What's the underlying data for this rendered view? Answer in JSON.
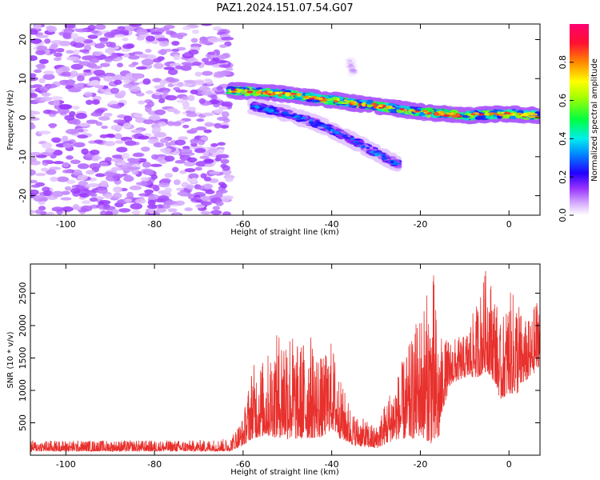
{
  "title": "PAZ1.2024.151.07.54.G07",
  "chart_data": [
    {
      "type": "heatmap",
      "xlabel": "Height of straight line (km)",
      "ylabel": "Frequency (Hz)",
      "xlim": [
        -108,
        7
      ],
      "ylim": [
        -25,
        24
      ],
      "x_ticks": [
        -100,
        -80,
        -60,
        -40,
        -20,
        0
      ],
      "y_ticks": [
        -20,
        -10,
        0,
        10,
        20
      ],
      "colorbar": {
        "label": "Normalized spectral amplitude",
        "range": [
          0,
          1
        ],
        "ticks": [
          0.0,
          0.2,
          0.4,
          0.6,
          0.8
        ],
        "colormap": [
          "#ffffff",
          "#e8c8ff",
          "#b070f0",
          "#7a1be0",
          "#0000ff",
          "#00d8ff",
          "#00ff60",
          "#ffff00",
          "#ff8000",
          "#ff0060"
        ]
      },
      "regions": [
        {
          "name": "noise",
          "x_range": [
            -108,
            -63
          ],
          "freq_range": [
            -25,
            24
          ],
          "amplitude": 0.12
        },
        {
          "name": "main_branch",
          "points": [
            [
              -63,
              7
            ],
            [
              -50,
              6
            ],
            [
              -40,
              4.5
            ],
            [
              -30,
              3
            ],
            [
              -20,
              1.5
            ],
            [
              -10,
              0.5
            ],
            [
              0,
              1
            ],
            [
              7,
              0.5
            ]
          ],
          "peak_amplitude": 0.95
        },
        {
          "name": "second_branch",
          "points": [
            [
              -58,
              3
            ],
            [
              -50,
              1
            ],
            [
              -42,
              -2
            ],
            [
              -35,
              -6
            ],
            [
              -30,
              -9
            ],
            [
              -25,
              -12
            ]
          ],
          "peak_amplitude": 0.35
        },
        {
          "name": "spur",
          "points": [
            [
              -36,
              14
            ],
            [
              -35,
              12
            ]
          ],
          "peak_amplitude": 0.1
        }
      ]
    },
    {
      "type": "line",
      "xlabel": "Height of straight line (km)",
      "ylabel": "SNR (10 * v/v)",
      "xlim": [
        -108,
        7
      ],
      "ylim": [
        0,
        2950
      ],
      "x_ticks": [
        -100,
        -80,
        -60,
        -40,
        -20,
        0
      ],
      "y_ticks": [
        500,
        1000,
        1500,
        2000,
        2500
      ],
      "color": "#e8302c",
      "envelope": {
        "x": [
          -108,
          -90,
          -70,
          -63,
          -60,
          -58,
          -55,
          -50,
          -48,
          -45,
          -42,
          -40,
          -38,
          -35,
          -30,
          -27,
          -25,
          -22,
          -20,
          -18,
          -17,
          -16,
          -15,
          -13,
          -10,
          -7,
          -5,
          -3,
          -2,
          0,
          2,
          3,
          5,
          7
        ],
        "low": [
          60,
          60,
          60,
          60,
          150,
          250,
          300,
          250,
          250,
          260,
          280,
          400,
          250,
          150,
          100,
          200,
          250,
          250,
          300,
          200,
          150,
          150,
          700,
          1100,
          1200,
          1200,
          1300,
          1100,
          850,
          950,
          950,
          1100,
          1200,
          1400
        ],
        "high": [
          230,
          230,
          230,
          260,
          600,
          1400,
          1500,
          2200,
          1700,
          1900,
          1500,
          1800,
          1150,
          650,
          450,
          1000,
          1300,
          1800,
          2300,
          2600,
          2850,
          1900,
          1800,
          1800,
          1850,
          2400,
          2950,
          2500,
          2000,
          2500,
          2550,
          2100,
          2100,
          2700
        ]
      }
    }
  ]
}
